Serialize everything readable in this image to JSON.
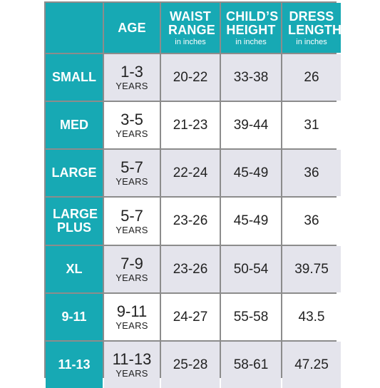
{
  "headers": [
    {
      "main": "",
      "sub": ""
    },
    {
      "main": "AGE",
      "sub": ""
    },
    {
      "main": "WAIST RANGE",
      "sub": "in inches"
    },
    {
      "main": "CHILD’S HEIGHT",
      "sub": "in inches"
    },
    {
      "main": "DRESS LENGTH",
      "sub": "in inches"
    }
  ],
  "rows": [
    {
      "size": "SMALL",
      "age": "1-3",
      "age_unit": "YEARS",
      "waist": "20-22",
      "height": "33-38",
      "length": "26"
    },
    {
      "size": "MED",
      "age": "3-5",
      "age_unit": "YEARS",
      "waist": "21-23",
      "height": "39-44",
      "length": "31"
    },
    {
      "size": "LARGE",
      "age": "5-7",
      "age_unit": "YEARS",
      "waist": "22-24",
      "height": "45-49",
      "length": "36"
    },
    {
      "size": "LARGE PLUS",
      "age": "5-7",
      "age_unit": "YEARS",
      "waist": "23-26",
      "height": "45-49",
      "length": "36"
    },
    {
      "size": "XL",
      "age": "7-9",
      "age_unit": "YEARS",
      "waist": "23-26",
      "height": "50-54",
      "length": "39.75"
    },
    {
      "size": "9-11",
      "age": "9-11",
      "age_unit": "YEARS",
      "waist": "24-27",
      "height": "55-58",
      "length": "43.5"
    },
    {
      "size": "11-13",
      "age": "11-13",
      "age_unit": "YEARS",
      "waist": "25-28",
      "height": "58-61",
      "length": "47.25"
    }
  ],
  "colors": {
    "header": "#17a9b4",
    "shaded_row": "#e4e4ec",
    "plain_row": "#ffffff",
    "grid": "#8c8c8c"
  }
}
